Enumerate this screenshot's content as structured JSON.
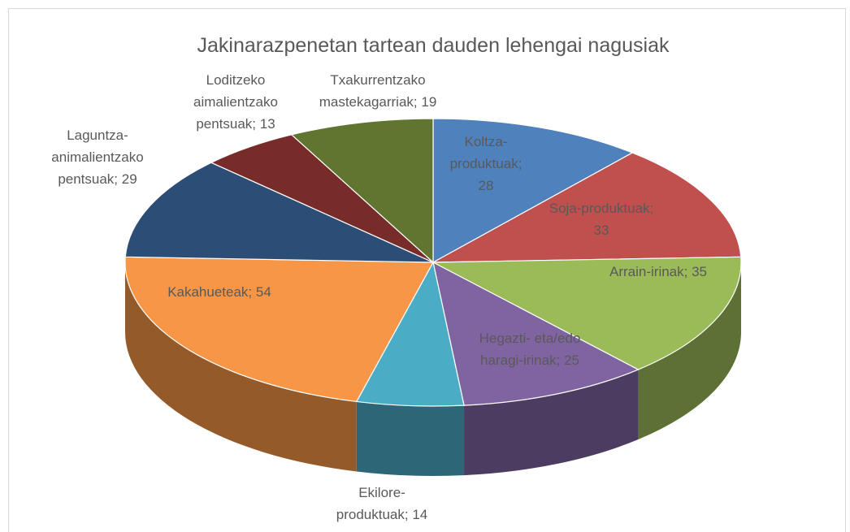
{
  "chart_data": {
    "type": "pie",
    "title": "Jakinarazpenetan tartean dauden lehengai nagusiak",
    "categories": [
      "Koltza-produktuak",
      "Soja-produktuak",
      "Arrain-irinak",
      "Hegazti- eta/edo haragi-irinak",
      "Ekilore-produktuak",
      "Kakahueteak",
      "Laguntza-animalientzako pentsuak",
      "Loditzeko aimalientzako pentsuak",
      "Txakurrentzako mastekagarriak"
    ],
    "values": [
      28,
      33,
      35,
      25,
      14,
      54,
      29,
      13,
      19
    ],
    "value_labels": [
      "Koltza-produktuak; 28",
      "Soja-produktuak; 33",
      "Arrain-irinak; 35",
      "Hegazti- eta/edo haragi-irinak; 25",
      "Ekilore-produktuak; 14",
      "Kakahueteak; 54",
      "Laguntza-animalientzako pentsuak; 29",
      "Loditzeko aimalientzako pentsuak; 13",
      "Txakurrentzako mastekagarriak; 19"
    ],
    "colors": [
      "#4f81bd",
      "#c0504d",
      "#9bbb59",
      "#8064a2",
      "#4bacc6",
      "#f79646",
      "#2c4d75",
      "#772c2a",
      "#5f7530"
    ]
  }
}
